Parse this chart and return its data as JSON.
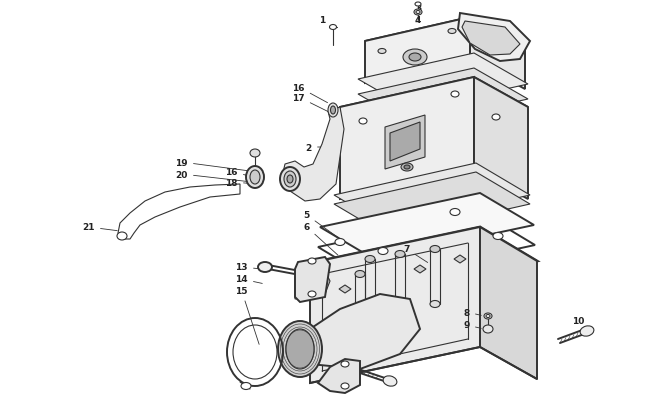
{
  "bg_color": "#ffffff",
  "line_color": "#333333",
  "lw_main": 1.4,
  "lw_thin": 0.8,
  "lw_thick": 2.0,
  "label_fontsize": 6.5,
  "label_color": "#222222"
}
